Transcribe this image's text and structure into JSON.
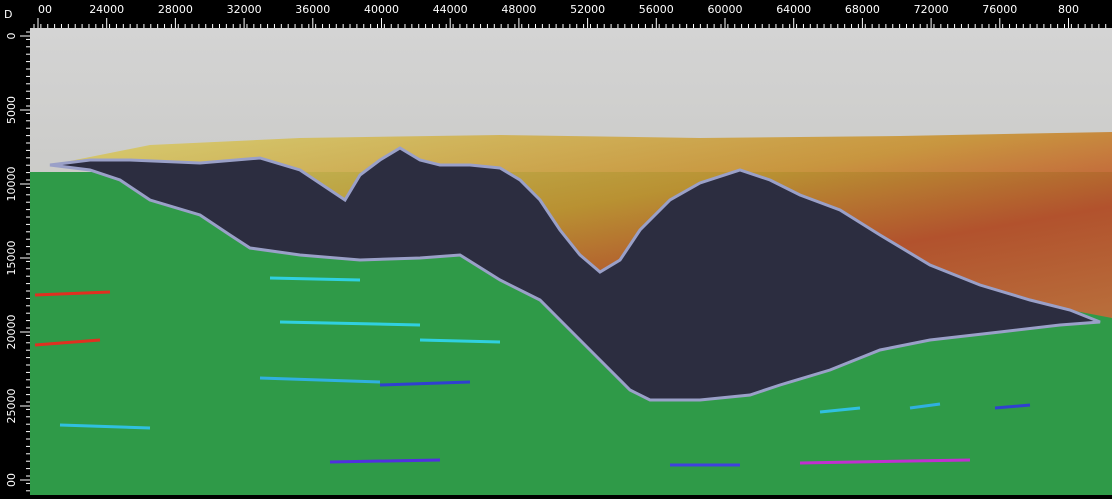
{
  "corner": "D",
  "top_ruler": {
    "labels": [
      "00",
      "24000",
      "28000",
      "32000",
      "36000",
      "40000",
      "44000",
      "48000",
      "52000",
      "56000",
      "60000",
      "64000",
      "68000",
      "72000",
      "76000",
      "800"
    ]
  },
  "left_ruler": {
    "labels": [
      "0",
      "5000",
      "10000",
      "15000",
      "20000",
      "25000",
      "00"
    ]
  }
}
